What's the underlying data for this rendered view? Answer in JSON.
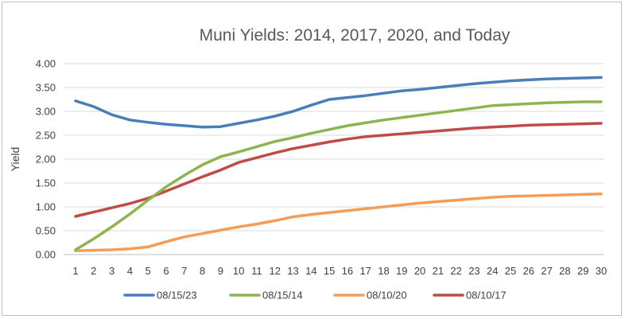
{
  "chart_data": {
    "type": "line",
    "title": "Muni Yields: 2014, 2017, 2020, and Today",
    "ylabel": "Yield",
    "xlabel": "",
    "ylim": [
      0,
      4
    ],
    "yticks": [
      "0.00",
      "0.50",
      "1.00",
      "1.50",
      "2.00",
      "2.50",
      "3.00",
      "3.50",
      "4.00"
    ],
    "x": [
      1,
      2,
      3,
      4,
      5,
      6,
      7,
      8,
      9,
      10,
      11,
      12,
      13,
      14,
      15,
      16,
      17,
      18,
      19,
      20,
      21,
      22,
      23,
      24,
      25,
      26,
      27,
      28,
      29,
      30
    ],
    "grid": true,
    "legend_position": "bottom",
    "series": [
      {
        "name": "08/15/23",
        "color": "#4a7ebb",
        "values": [
          3.22,
          3.1,
          2.93,
          2.82,
          2.77,
          2.73,
          2.7,
          2.67,
          2.68,
          2.75,
          2.82,
          2.9,
          3.0,
          3.13,
          3.25,
          3.29,
          3.33,
          3.38,
          3.43,
          3.46,
          3.5,
          3.54,
          3.58,
          3.61,
          3.64,
          3.66,
          3.68,
          3.69,
          3.7,
          3.71
        ]
      },
      {
        "name": "08/15/14",
        "color": "#8eb44f",
        "values": [
          0.1,
          0.33,
          0.58,
          0.85,
          1.14,
          1.42,
          1.66,
          1.88,
          2.05,
          2.15,
          2.26,
          2.37,
          2.45,
          2.54,
          2.62,
          2.7,
          2.76,
          2.82,
          2.87,
          2.92,
          2.97,
          3.02,
          3.07,
          3.12,
          3.14,
          3.16,
          3.18,
          3.19,
          3.2,
          3.2
        ]
      },
      {
        "name": "08/10/20",
        "color": "#f59d56",
        "values": [
          0.08,
          0.09,
          0.1,
          0.12,
          0.16,
          0.27,
          0.37,
          0.44,
          0.51,
          0.58,
          0.64,
          0.71,
          0.79,
          0.84,
          0.88,
          0.92,
          0.96,
          1.0,
          1.04,
          1.08,
          1.11,
          1.14,
          1.17,
          1.2,
          1.22,
          1.23,
          1.24,
          1.25,
          1.26,
          1.27
        ]
      },
      {
        "name": "08/10/17",
        "color": "#be4b48",
        "values": [
          0.8,
          0.89,
          0.98,
          1.07,
          1.18,
          1.33,
          1.48,
          1.63,
          1.77,
          1.93,
          2.03,
          2.13,
          2.22,
          2.29,
          2.36,
          2.42,
          2.47,
          2.5,
          2.53,
          2.56,
          2.59,
          2.62,
          2.65,
          2.67,
          2.69,
          2.71,
          2.72,
          2.73,
          2.74,
          2.75
        ]
      }
    ]
  }
}
